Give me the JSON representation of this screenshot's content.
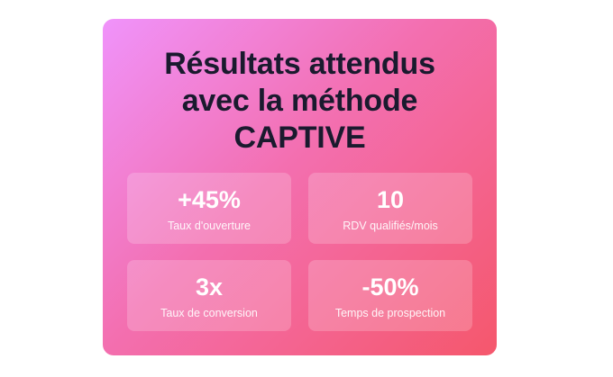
{
  "card": {
    "title_lines": [
      "Résultats attendus",
      "avec la méthode",
      "CAPTIVE"
    ],
    "gradient": {
      "start": "#f093fb",
      "end": "#f5576c"
    },
    "title_color": "#1a1a2e"
  },
  "stats": [
    {
      "value": "+45%",
      "label": "Taux d'ouverture"
    },
    {
      "value": "10",
      "label": "RDV qualifiés/mois"
    },
    {
      "value": "3x",
      "label": "Taux de conversion"
    },
    {
      "value": "-50%",
      "label": "Temps de prospection"
    }
  ]
}
